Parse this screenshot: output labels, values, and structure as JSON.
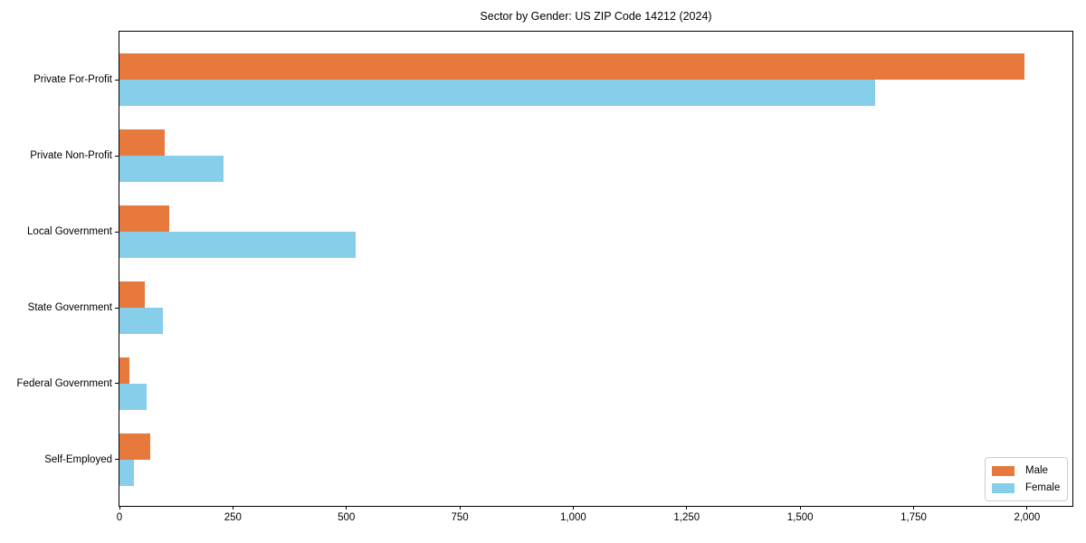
{
  "title": "Sector by Gender: US ZIP Code 14212 (2024)",
  "colors": {
    "male": "#E8793D",
    "female": "#87CEEB",
    "axis": "#000000",
    "legend_border": "#CCCCCC",
    "background": "#FFFFFF"
  },
  "legend": {
    "position": "lower right",
    "items": [
      {
        "label": "Male",
        "color": "#E8793D"
      },
      {
        "label": "Female",
        "color": "#87CEEB"
      }
    ]
  },
  "x_axis": {
    "ticks": [
      0,
      250,
      500,
      750,
      1000,
      1250,
      1500,
      1750,
      2000
    ],
    "tick_labels": [
      "0",
      "250",
      "500",
      "750",
      "1,000",
      "1,250",
      "1,500",
      "1,750",
      "2,000"
    ]
  },
  "chart_data": {
    "type": "bar",
    "orientation": "horizontal",
    "title": "Sector by Gender: US ZIP Code 14212 (2024)",
    "categories": [
      "Private For-Profit",
      "Private Non-Profit",
      "Local Government",
      "State Government",
      "Federal Government",
      "Self-Employed"
    ],
    "series": [
      {
        "name": "Male",
        "color": "#E8793D",
        "values": [
          1995,
          100,
          110,
          55,
          22,
          67
        ]
      },
      {
        "name": "Female",
        "color": "#87CEEB",
        "values": [
          1665,
          230,
          520,
          95,
          60,
          31
        ]
      }
    ],
    "xlabel": "",
    "ylabel": "",
    "xlim": [
      0,
      2100
    ],
    "grid": false,
    "legend_position": "lower right"
  }
}
